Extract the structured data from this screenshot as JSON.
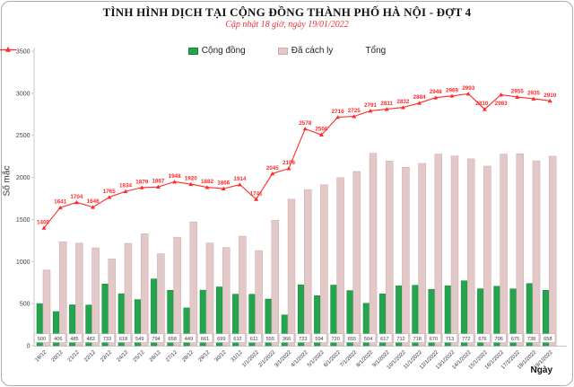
{
  "header": {
    "title": "TÌNH HÌNH DỊCH TẠI CỘNG ĐỒNG THÀNH PHỐ HÀ NỘI - ĐỢT 4",
    "subtitle": "Cập nhật 18 giờ, ngày 19/01/2022"
  },
  "chart_data": {
    "type": "bar",
    "subtype": "grouped-bars-with-line",
    "title": "TÌNH HÌNH DỊCH TẠI CỘNG ĐỒNG THÀNH PHỐ HÀ NỘI - ĐỢT 4",
    "subtitle": "Cập nhật 18 giờ, ngày 19/01/2022",
    "xlabel": "Ngày",
    "ylabel": "Số mắc",
    "ylim": [
      0,
      3500
    ],
    "yticks": [
      0,
      500,
      1000,
      1500,
      2000,
      2500,
      3000,
      3500
    ],
    "grid": false,
    "legend_position": "top",
    "categories": [
      "19/12",
      "20/12",
      "21/12",
      "22/12",
      "23/12",
      "24/12",
      "25/12",
      "26/12",
      "27/12",
      "28/12",
      "29/12",
      "30/12",
      "31/12",
      "1/1/2022",
      "2/1/2022",
      "3/1/2022",
      "4/1/2022",
      "5/1/2022",
      "6/1/2022",
      "7/1/2022",
      "8/1/2022",
      "9/1/2022",
      "10/1/2022",
      "11/1/2022",
      "12/1/2022",
      "13/1/2022",
      "14/1/2022",
      "15/1/2022",
      "16/1/2022",
      "17/1/2022",
      "18/1/2022",
      "19/1/2022"
    ],
    "series": [
      {
        "name": "Cộng đồng",
        "type": "bar",
        "color": "#22A54D",
        "border": "#148238",
        "values": [
          500,
          406,
          485,
          483,
          733,
          618,
          549,
          794,
          658,
          449,
          661,
          699,
          612,
          611,
          555,
          366,
          723,
          594,
          720,
          655,
          504,
          617,
          712,
          718,
          670,
          713,
          772,
          676,
          706,
          675,
          738,
          658
        ],
        "labels_shown": true
      },
      {
        "name": "Đã cách ly",
        "type": "bar",
        "color": "#E3C8C8",
        "border": "#CFA9A9",
        "values": [
          900,
          1235,
          1219,
          1163,
          1032,
          1216,
          1330,
          1093,
          1290,
          1471,
          1221,
          1167,
          1302,
          1130,
          1490,
          1740,
          1855,
          1912,
          1996,
          2070,
          2287,
          2194,
          2120,
          2166,
          2278,
          2256,
          2221,
          2134,
          2277,
          2280,
          2197,
          2252
        ],
        "labels_shown": false
      },
      {
        "name": "Tổng",
        "type": "line",
        "color": "#FF2A2A",
        "values": [
          1400,
          1641,
          1704,
          1646,
          1765,
          1834,
          1879,
          1887,
          1948,
          1920,
          1882,
          1866,
          1914,
          1741,
          2045,
          2106,
          2578,
          2506,
          2716,
          2725,
          2791,
          2811,
          2832,
          2884,
          2948,
          2969,
          2993,
          2810,
          2983,
          2955,
          2935,
          2910
        ],
        "labels_shown": true
      }
    ]
  }
}
